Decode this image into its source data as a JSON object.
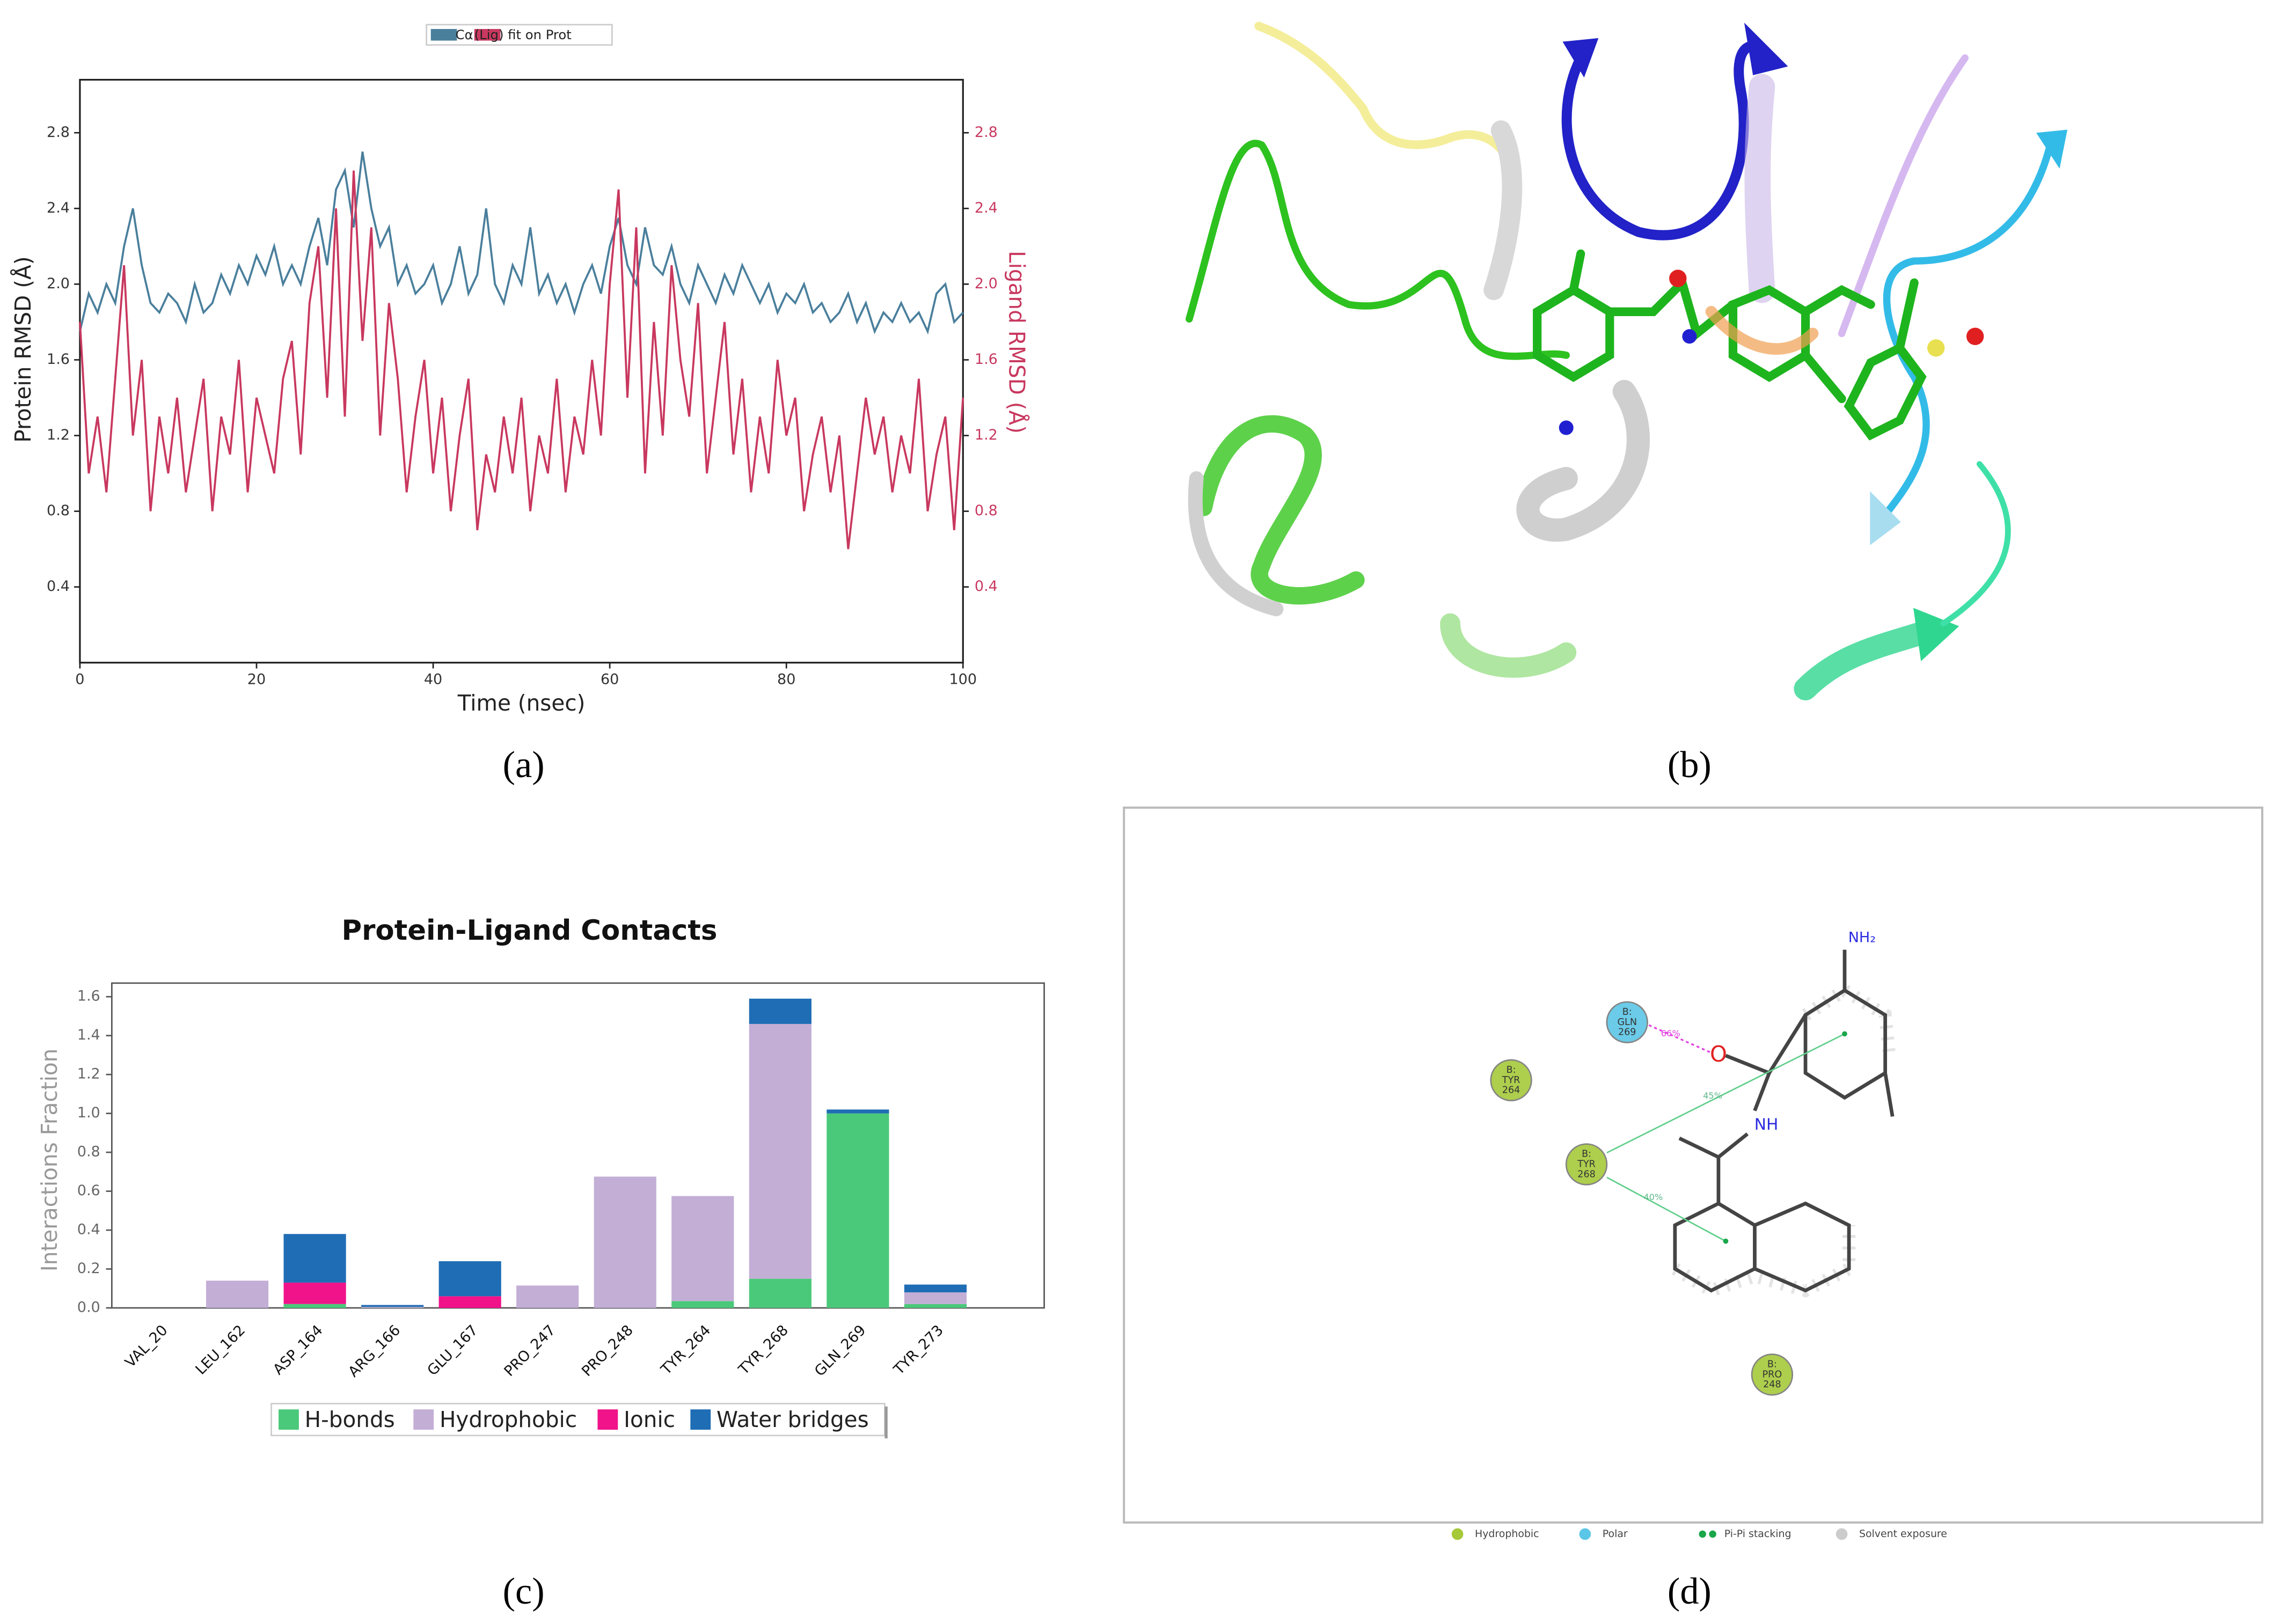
{
  "panel_labels": [
    "(a)",
    "(b)",
    "(c)",
    "(d)"
  ],
  "chart_data": [
    {
      "type": "line",
      "xlabel": "Time (nsec)",
      "ylabel": "Protein RMSD (Å)",
      "y2label": "Ligand RMSD (Å)",
      "xlim": [
        0,
        100
      ],
      "xticks": [
        0,
        20,
        40,
        60,
        80,
        100
      ],
      "ylim": [
        0,
        3.08
      ],
      "yticks": [
        0.4,
        0.8,
        1.2,
        1.6,
        {
          "value": 2,
          "label": "2.0"
        },
        2.4,
        2.8
      ],
      "y2lim": [
        0,
        3.08
      ],
      "y2ticks": [
        0.4,
        0.8,
        1.2,
        1.6,
        {
          "value": 2,
          "label": "2.0"
        },
        2.4,
        2.8
      ],
      "x": [
        0,
        1,
        2,
        3,
        4,
        5,
        6,
        7,
        8,
        9,
        10,
        11,
        12,
        13,
        14,
        15,
        16,
        17,
        18,
        19,
        20,
        21,
        22,
        23,
        24,
        25,
        26,
        27,
        28,
        29,
        30,
        31,
        32,
        33,
        34,
        35,
        36,
        37,
        38,
        39,
        40,
        41,
        42,
        43,
        44,
        45,
        46,
        47,
        48,
        49,
        50,
        51,
        52,
        53,
        54,
        55,
        56,
        57,
        58,
        59,
        60,
        61,
        62,
        63,
        64,
        65,
        66,
        67,
        68,
        69,
        70,
        71,
        72,
        73,
        74,
        75,
        76,
        77,
        78,
        79,
        80,
        81,
        82,
        83,
        84,
        85,
        86,
        87,
        88,
        89,
        90,
        91,
        92,
        93,
        94,
        95,
        96,
        97,
        98,
        99,
        100
      ],
      "series": [
        {
          "name": "Cα",
          "color": "#4a7f9c",
          "values": [
            1.75,
            1.95,
            1.85,
            2.0,
            1.9,
            2.2,
            2.4,
            2.1,
            1.9,
            1.85,
            1.95,
            1.9,
            1.8,
            2.0,
            1.85,
            1.9,
            2.05,
            1.95,
            2.1,
            2.0,
            2.15,
            2.05,
            2.2,
            2.0,
            2.1,
            2.0,
            2.2,
            2.35,
            2.1,
            2.5,
            2.6,
            2.3,
            2.7,
            2.4,
            2.2,
            2.3,
            2.0,
            2.1,
            1.95,
            2.0,
            2.1,
            1.9,
            2.0,
            2.2,
            1.95,
            2.05,
            2.4,
            2.0,
            1.9,
            2.1,
            2.0,
            2.3,
            1.95,
            2.05,
            1.9,
            2.0,
            1.85,
            2.0,
            2.1,
            1.95,
            2.2,
            2.35,
            2.1,
            2.0,
            2.3,
            2.1,
            2.05,
            2.2,
            2.0,
            1.9,
            2.1,
            2.0,
            1.9,
            2.05,
            1.95,
            2.1,
            2.0,
            1.9,
            2.0,
            1.85,
            1.95,
            1.9,
            2.0,
            1.85,
            1.9,
            1.8,
            1.85,
            1.95,
            1.8,
            1.9,
            1.75,
            1.85,
            1.8,
            1.9,
            1.8,
            1.85,
            1.75,
            1.95,
            2.0,
            1.8,
            1.85
          ]
        },
        {
          "name": "(Lig) fit on Prot",
          "color": "#c8385f",
          "axis": "y2",
          "values": [
            1.8,
            1.0,
            1.3,
            0.9,
            1.5,
            2.1,
            1.2,
            1.6,
            0.8,
            1.3,
            1.0,
            1.4,
            0.9,
            1.2,
            1.5,
            0.8,
            1.3,
            1.1,
            1.6,
            0.9,
            1.4,
            1.2,
            1.0,
            1.5,
            1.7,
            1.1,
            1.9,
            2.2,
            1.4,
            2.4,
            1.3,
            2.6,
            1.7,
            2.3,
            1.2,
            1.9,
            1.5,
            0.9,
            1.3,
            1.6,
            1.0,
            1.4,
            0.8,
            1.2,
            1.5,
            0.7,
            1.1,
            0.9,
            1.3,
            1.0,
            1.4,
            0.8,
            1.2,
            1.0,
            1.5,
            0.9,
            1.3,
            1.1,
            1.6,
            1.2,
            2.0,
            2.5,
            1.4,
            2.3,
            1.0,
            1.8,
            1.2,
            2.1,
            1.6,
            1.3,
            1.9,
            1.0,
            1.4,
            1.8,
            1.1,
            1.5,
            0.9,
            1.3,
            1.0,
            1.6,
            1.2,
            1.4,
            0.8,
            1.1,
            1.3,
            0.9,
            1.2,
            0.6,
            1.0,
            1.4,
            1.1,
            1.3,
            0.9,
            1.2,
            1.0,
            1.5,
            0.8,
            1.1,
            1.3,
            0.7,
            1.4
          ]
        }
      ]
    },
    {
      "type": "stacked_bar",
      "title": "Protein-Ligand Contacts",
      "ylabel": "Interactions Fraction",
      "categories": [
        "VAL_20",
        "LEU_162",
        "ASP_164",
        "ARG_166",
        "GLU_167",
        "PRO_247",
        "PRO_248",
        "TYR_264",
        "TYR_268",
        "GLN_269",
        "TYR_273"
      ],
      "ylim": [
        0,
        1.67
      ],
      "yticks": [
        {
          "value": 0,
          "label": "0.0"
        },
        0.2,
        0.4,
        0.6,
        0.8,
        {
          "value": 1,
          "label": "1.0"
        },
        1.2,
        1.4,
        1.6
      ],
      "series": [
        {
          "name": "H-bonds",
          "color": "#4bc97a",
          "values": [
            0,
            0,
            0.02,
            0,
            0,
            0,
            0,
            0.035,
            0.15,
            1.0,
            0.02
          ]
        },
        {
          "name": "Hydrophobic",
          "color": "#c3aed6",
          "values": [
            0,
            0.14,
            0,
            0.005,
            0,
            0.115,
            0.675,
            0.54,
            1.31,
            0,
            0.06
          ]
        },
        {
          "name": "Ionic",
          "color": "#f0138a",
          "values": [
            0,
            0,
            0.11,
            0,
            0.06,
            0,
            0,
            0,
            0,
            0,
            0
          ]
        },
        {
          "name": "Water bridges",
          "color": "#1f6db5",
          "values": [
            0,
            0,
            0.25,
            0.01,
            0.18,
            0,
            0,
            0,
            0.13,
            0.02,
            0.04
          ]
        }
      ]
    }
  ],
  "diagram": {
    "residues": [
      {
        "lines": [
          "B:",
          "TYR",
          "264"
        ],
        "color": "#a6c93a"
      },
      {
        "lines": [
          "B:",
          "GLN",
          "269"
        ],
        "color": "#5cc6e6"
      },
      {
        "lines": [
          "B:",
          "TYR",
          "268"
        ],
        "color": "#a6c93a"
      },
      {
        "lines": [
          "B:",
          "PRO",
          "248"
        ],
        "color": "#a6c93a"
      }
    ],
    "atoms": [
      "O",
      "NH",
      "NH₂"
    ],
    "interactions": [
      "66%",
      "45%",
      "40%"
    ],
    "legend": [
      {
        "name": "Hydrophobic",
        "color": "#a6c93a"
      },
      {
        "name": "Polar",
        "color": "#5cc6e6"
      },
      {
        "name": "Pi-Pi stacking",
        "color": "#1aa64a"
      },
      {
        "name": "Solvent exposure",
        "color": "#cccccc"
      }
    ]
  }
}
